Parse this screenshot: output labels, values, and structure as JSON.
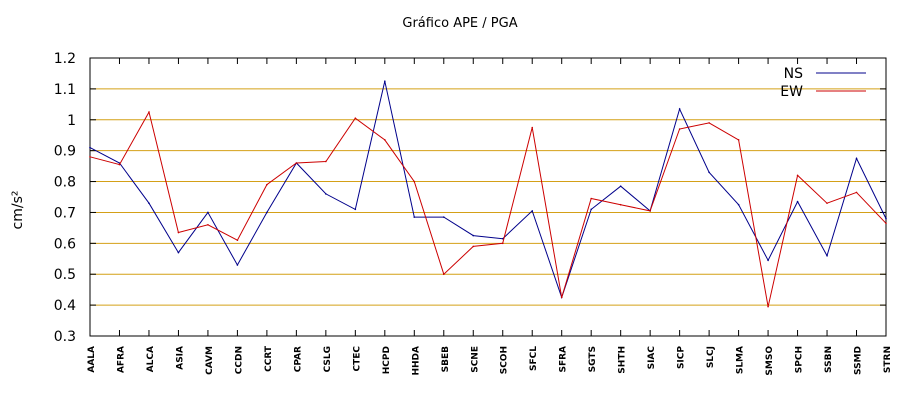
{
  "chart_data": {
    "type": "line",
    "title": "Gráfico  APE / PGA",
    "ylabel": "cm/s²",
    "xlabel": "",
    "ylim": [
      0.3,
      1.2
    ],
    "yticks": [
      "0.3",
      "0.4",
      "0.5",
      "0.6",
      "0.7",
      "0.8",
      "0.9",
      "1",
      "1.1",
      "1.2"
    ],
    "grid": "horizontal",
    "legend_position": "top-right",
    "categories": [
      "AALA",
      "AFRA",
      "ALCA",
      "ASIA",
      "CAVM",
      "CCDN",
      "CCRT",
      "CPAR",
      "CSLG",
      "CTEC",
      "HCPD",
      "HHDA",
      "SBEB",
      "SCNE",
      "SCOH",
      "SFCL",
      "SFRA",
      "SGTS",
      "SHTH",
      "SIAC",
      "SICP",
      "SLCJ",
      "SLMA",
      "SMSO",
      "SPCH",
      "SSBN",
      "SSMD",
      "STRN"
    ],
    "series": [
      {
        "name": "NS",
        "color": "#00008b",
        "values": [
          0.91,
          0.86,
          0.73,
          0.57,
          0.7,
          0.53,
          0.7,
          0.86,
          0.76,
          0.71,
          1.125,
          0.685,
          0.685,
          0.625,
          0.615,
          0.705,
          0.425,
          0.71,
          0.785,
          0.705,
          1.035,
          0.83,
          0.725,
          0.545,
          0.735,
          0.56,
          0.875,
          0.68
        ]
      },
      {
        "name": "EW",
        "color": "#cc0000",
        "values": [
          0.88,
          0.855,
          1.025,
          0.635,
          0.66,
          0.61,
          0.79,
          0.86,
          0.865,
          1.005,
          0.935,
          0.8,
          0.5,
          0.59,
          0.6,
          0.975,
          0.425,
          0.745,
          0.725,
          0.705,
          0.97,
          0.99,
          0.935,
          0.395,
          0.82,
          0.73,
          0.765,
          0.665
        ]
      }
    ]
  }
}
